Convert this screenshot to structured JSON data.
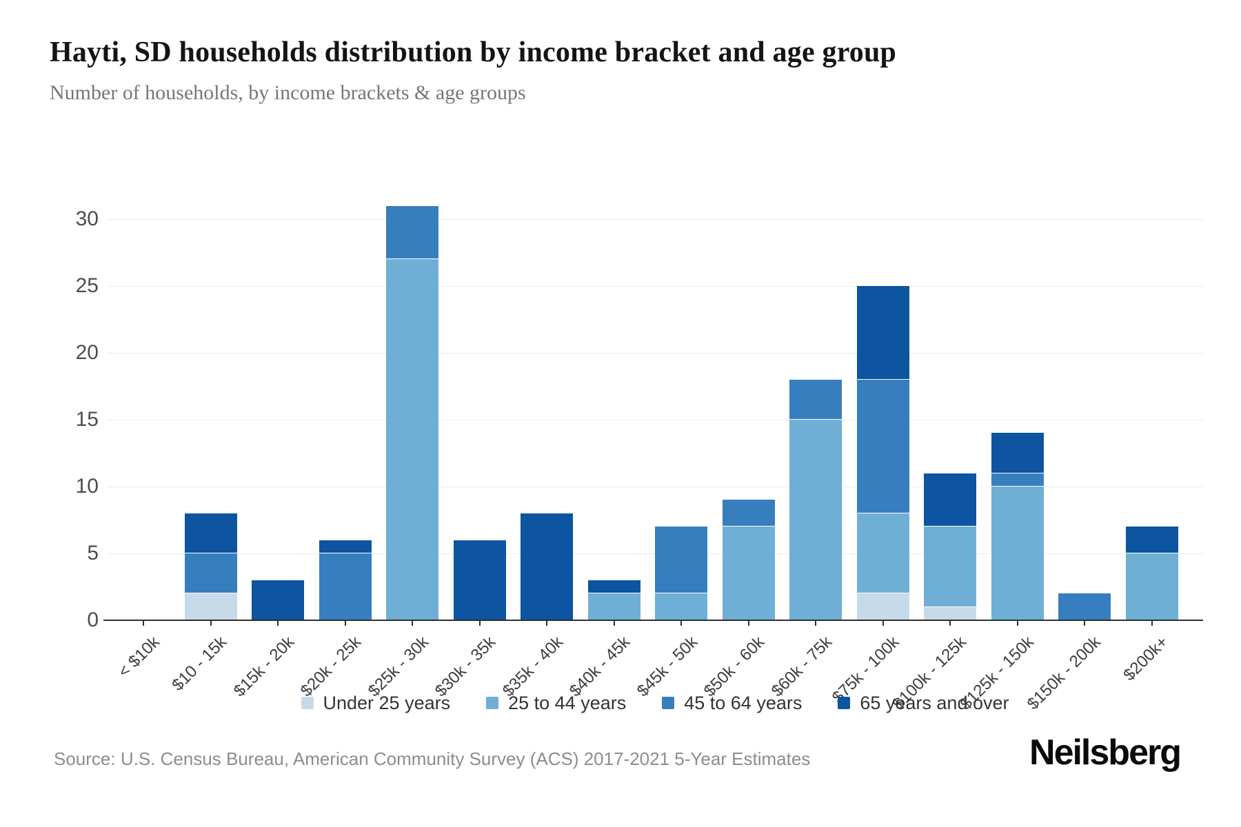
{
  "page": {
    "title": "Hayti, SD households distribution by income bracket and age group",
    "subtitle": "Number of households, by income brackets & age groups",
    "source": "Source: U.S. Census Bureau, American Community Survey (ACS) 2017-2021 5-Year Estimates",
    "brand": "Neilsberg"
  },
  "chart_data": {
    "type": "bar",
    "stacked": true,
    "title": "Hayti, SD households distribution by income bracket and age group",
    "xlabel": "",
    "ylabel": "Number of households",
    "ylim": [
      0,
      30
    ],
    "yticks": [
      0,
      5,
      10,
      15,
      20,
      25,
      30
    ],
    "grid": true,
    "legend_position": "bottom-center",
    "categories": [
      "< $10k",
      "$10 - 15k",
      "$15k - 20k",
      "$20k - 25k",
      "$25k - 30k",
      "$30k - 35k",
      "$35k - 40k",
      "$40k - 45k",
      "$45k - 50k",
      "$50k - 60k",
      "$60k - 75k",
      "$75k - 100k",
      "$100k - 125k",
      "$125k - 150k",
      "$150k - 200k",
      "$200k+"
    ],
    "series": [
      {
        "name": "Under 25 years",
        "color": "#c7daea",
        "values": [
          0,
          2,
          0,
          0,
          0,
          0,
          0,
          0,
          0,
          0,
          0,
          2,
          1,
          0,
          0,
          0
        ]
      },
      {
        "name": "25 to 44 years",
        "color": "#6fafd6",
        "values": [
          0,
          0,
          0,
          0,
          27,
          0,
          0,
          2,
          2,
          7,
          15,
          6,
          6,
          10,
          0,
          5
        ]
      },
      {
        "name": "45 to 64 years",
        "color": "#377ebf",
        "values": [
          0,
          3,
          0,
          5,
          4,
          0,
          0,
          0,
          5,
          2,
          3,
          10,
          0,
          1,
          2,
          0
        ]
      },
      {
        "name": "65 years and over",
        "color": "#0d54a1",
        "values": [
          0,
          3,
          3,
          1,
          0,
          6,
          8,
          1,
          0,
          0,
          0,
          7,
          4,
          3,
          0,
          2
        ]
      }
    ],
    "totals": [
      0,
      8,
      3,
      6,
      31,
      6,
      8,
      3,
      7,
      9,
      18,
      25,
      11,
      14,
      2,
      7
    ]
  }
}
